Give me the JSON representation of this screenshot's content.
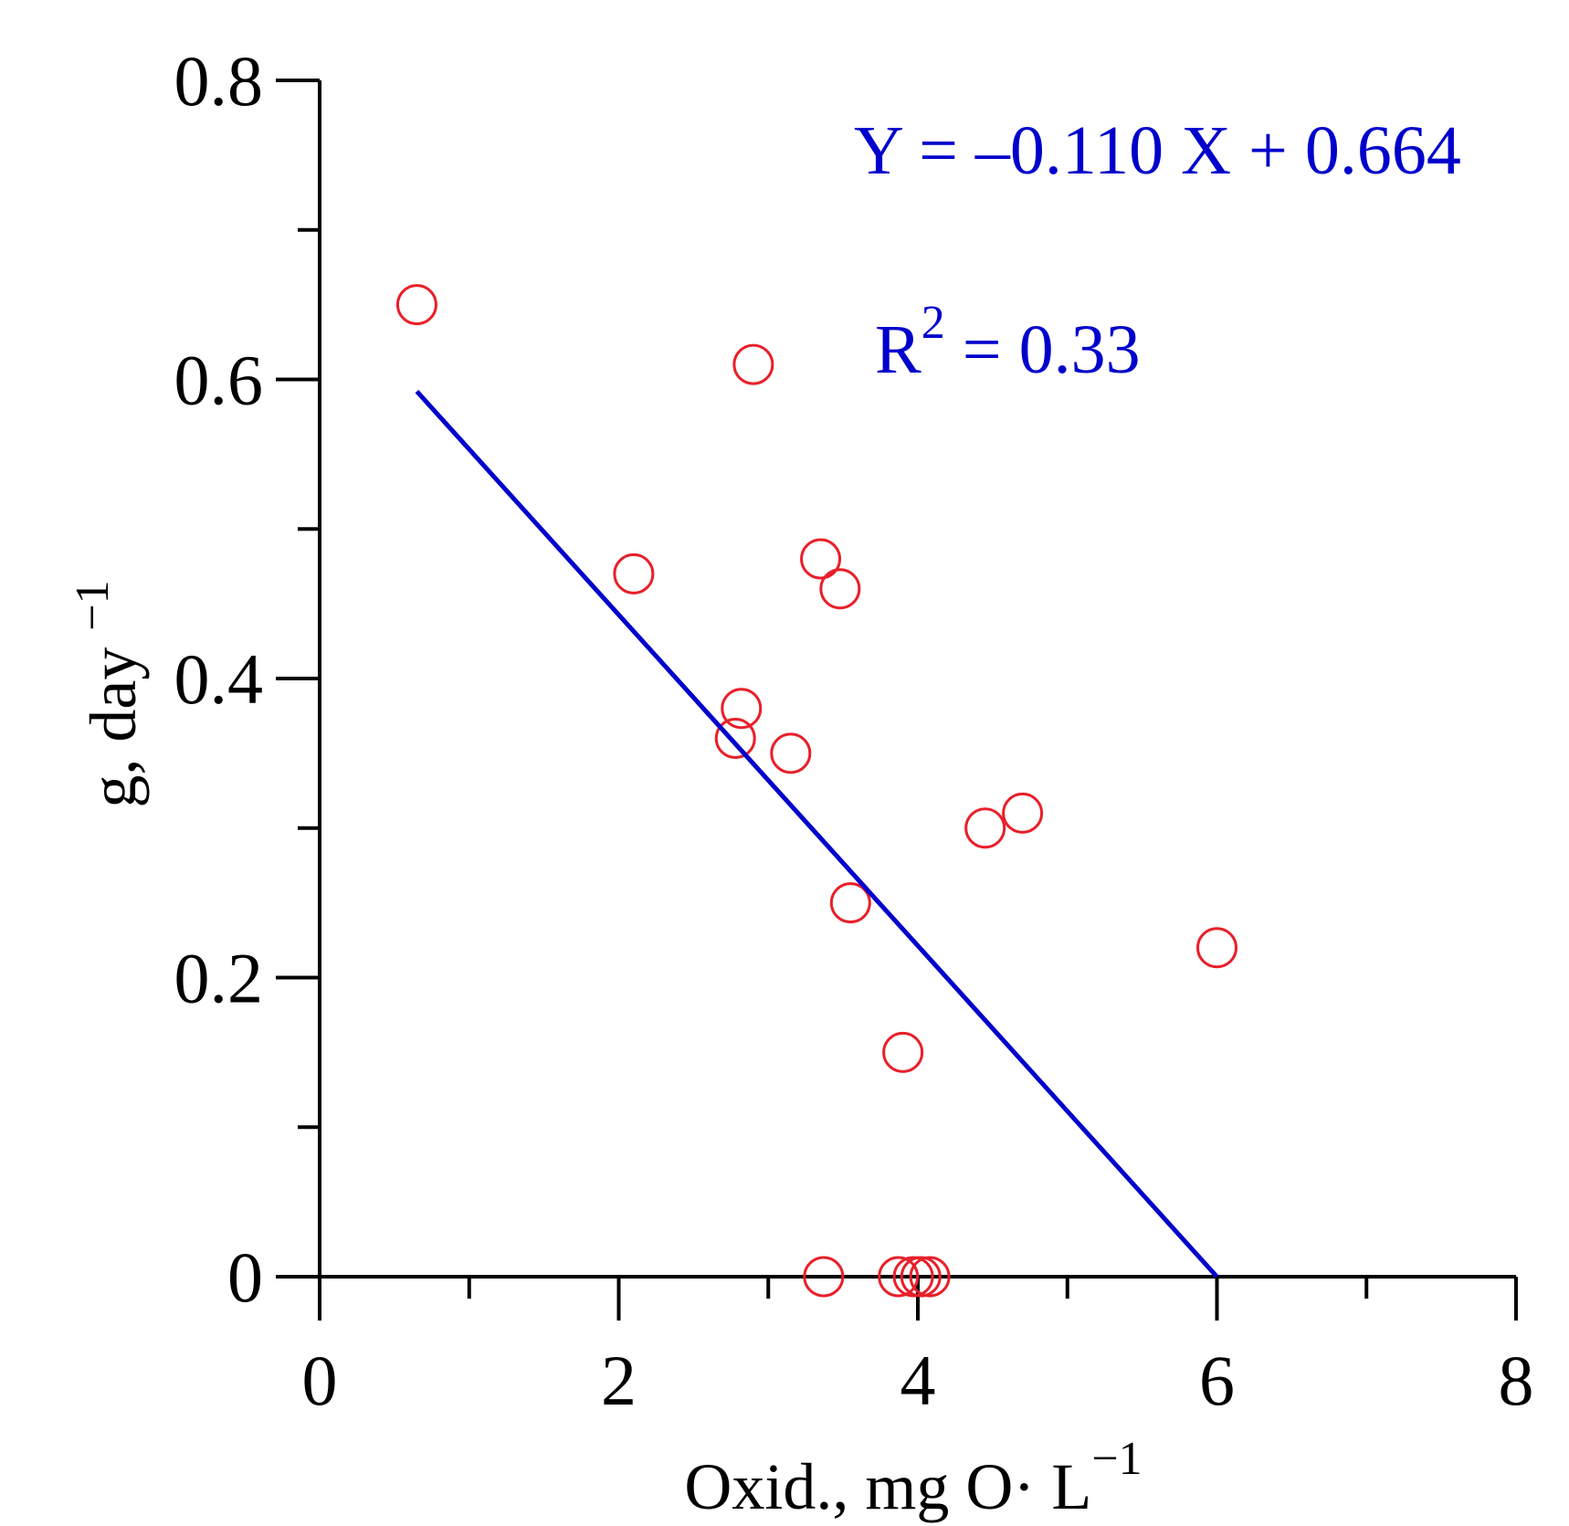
{
  "chart_data": {
    "type": "scatter",
    "title": "",
    "xlabel": {
      "main": "Oxid., mg O· L",
      "sup": "−1"
    },
    "ylabel": {
      "main": "g, day ",
      "sup": "−1"
    },
    "xlim": [
      0,
      8
    ],
    "ylim": [
      0,
      0.8
    ],
    "x_ticks": [
      0,
      2,
      4,
      6,
      8
    ],
    "x_tick_labels": [
      "0",
      "2",
      "4",
      "6",
      "8"
    ],
    "x_minor_ticks": [
      1,
      3,
      5,
      7
    ],
    "y_ticks": [
      0,
      0.2,
      0.4,
      0.6,
      0.8
    ],
    "y_tick_labels": [
      "0",
      "0.2",
      "0.4",
      "0.6",
      "0.8"
    ],
    "y_minor_ticks": [
      0.1,
      0.3,
      0.5,
      0.7
    ],
    "grid": false,
    "series": [
      {
        "points": [
          [
            0.65,
            0.65
          ],
          [
            2.9,
            0.61
          ],
          [
            2.1,
            0.47
          ],
          [
            3.35,
            0.48
          ],
          [
            3.48,
            0.46
          ],
          [
            2.82,
            0.38
          ],
          [
            2.78,
            0.36
          ],
          [
            3.15,
            0.35
          ],
          [
            4.45,
            0.3
          ],
          [
            4.7,
            0.31
          ],
          [
            3.55,
            0.25
          ],
          [
            6.0,
            0.22
          ],
          [
            3.9,
            0.15
          ],
          [
            3.37,
            0.0
          ],
          [
            3.87,
            0.0
          ],
          [
            3.97,
            0.0
          ],
          [
            4.02,
            0.0
          ],
          [
            4.08,
            0.0
          ]
        ],
        "color": "#e8202a",
        "marker": "open-circle"
      }
    ],
    "fit_line": {
      "x": [
        0.65,
        6.0
      ],
      "y": [
        0.592,
        0.0
      ],
      "color": "#0000cc"
    },
    "annotations": {
      "equation": "Y = –0.110  X + 0.664",
      "r2_label": "R",
      "r2_sup": "2",
      "r2_value": " = 0.33"
    }
  }
}
